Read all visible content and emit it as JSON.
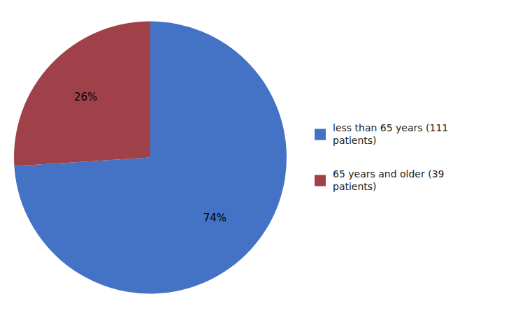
{
  "chart_data": {
    "type": "pie",
    "categories": [
      "less than 65 years (111\npatients)",
      "65 years and older (39\npatients)"
    ],
    "values": [
      74,
      26
    ],
    "value_labels": [
      "74%",
      "26%"
    ],
    "colors": [
      "#4472C4",
      "#A0414A"
    ],
    "data_labels": true,
    "legend": "right"
  }
}
